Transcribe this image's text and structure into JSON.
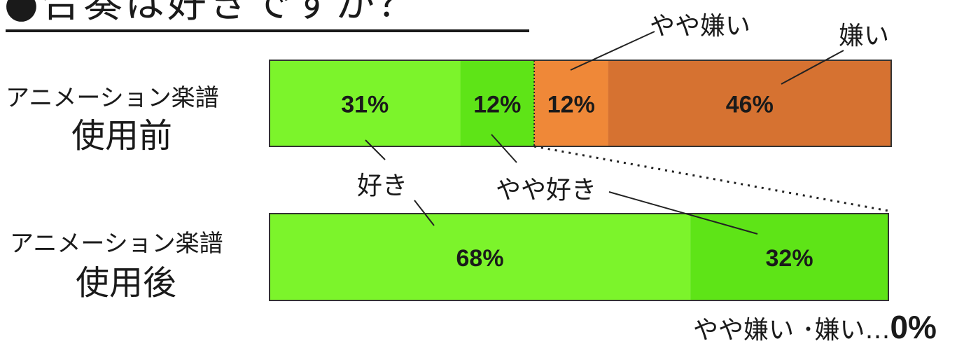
{
  "title": "●合奏は好きですか？",
  "chart_data": {
    "type": "bar",
    "orientation": "horizontal-stacked-100",
    "categories": [
      "アニメーション楽譜 使用前",
      "アニメーション楽譜 使用後"
    ],
    "category_labels": [
      {
        "top": "アニメーション楽譜",
        "main": "使用前"
      },
      {
        "top": "アニメーション楽譜",
        "main": "使用後"
      }
    ],
    "series": [
      {
        "name": "好き",
        "values": [
          31,
          68
        ],
        "labels": [
          "31%",
          "68%"
        ],
        "color": "#7cf42b"
      },
      {
        "name": "やや好き",
        "values": [
          12,
          32
        ],
        "labels": [
          "12%",
          "32%"
        ],
        "color": "#5ee417"
      },
      {
        "name": "やや嫌い",
        "values": [
          12,
          0
        ],
        "labels": [
          "12%",
          ""
        ],
        "color": "#ef8838"
      },
      {
        "name": "嫌い",
        "values": [
          46,
          0
        ],
        "labels": [
          "46%",
          ""
        ],
        "color": "#d67231"
      }
    ],
    "annotations": {
      "like": "好き",
      "somewhat_like": "やや好き",
      "somewhat_dislike": "やや嫌い",
      "dislike": "嫌い"
    },
    "footnote": {
      "text": "やや嫌い ･嫌い…",
      "value": "0%"
    }
  }
}
